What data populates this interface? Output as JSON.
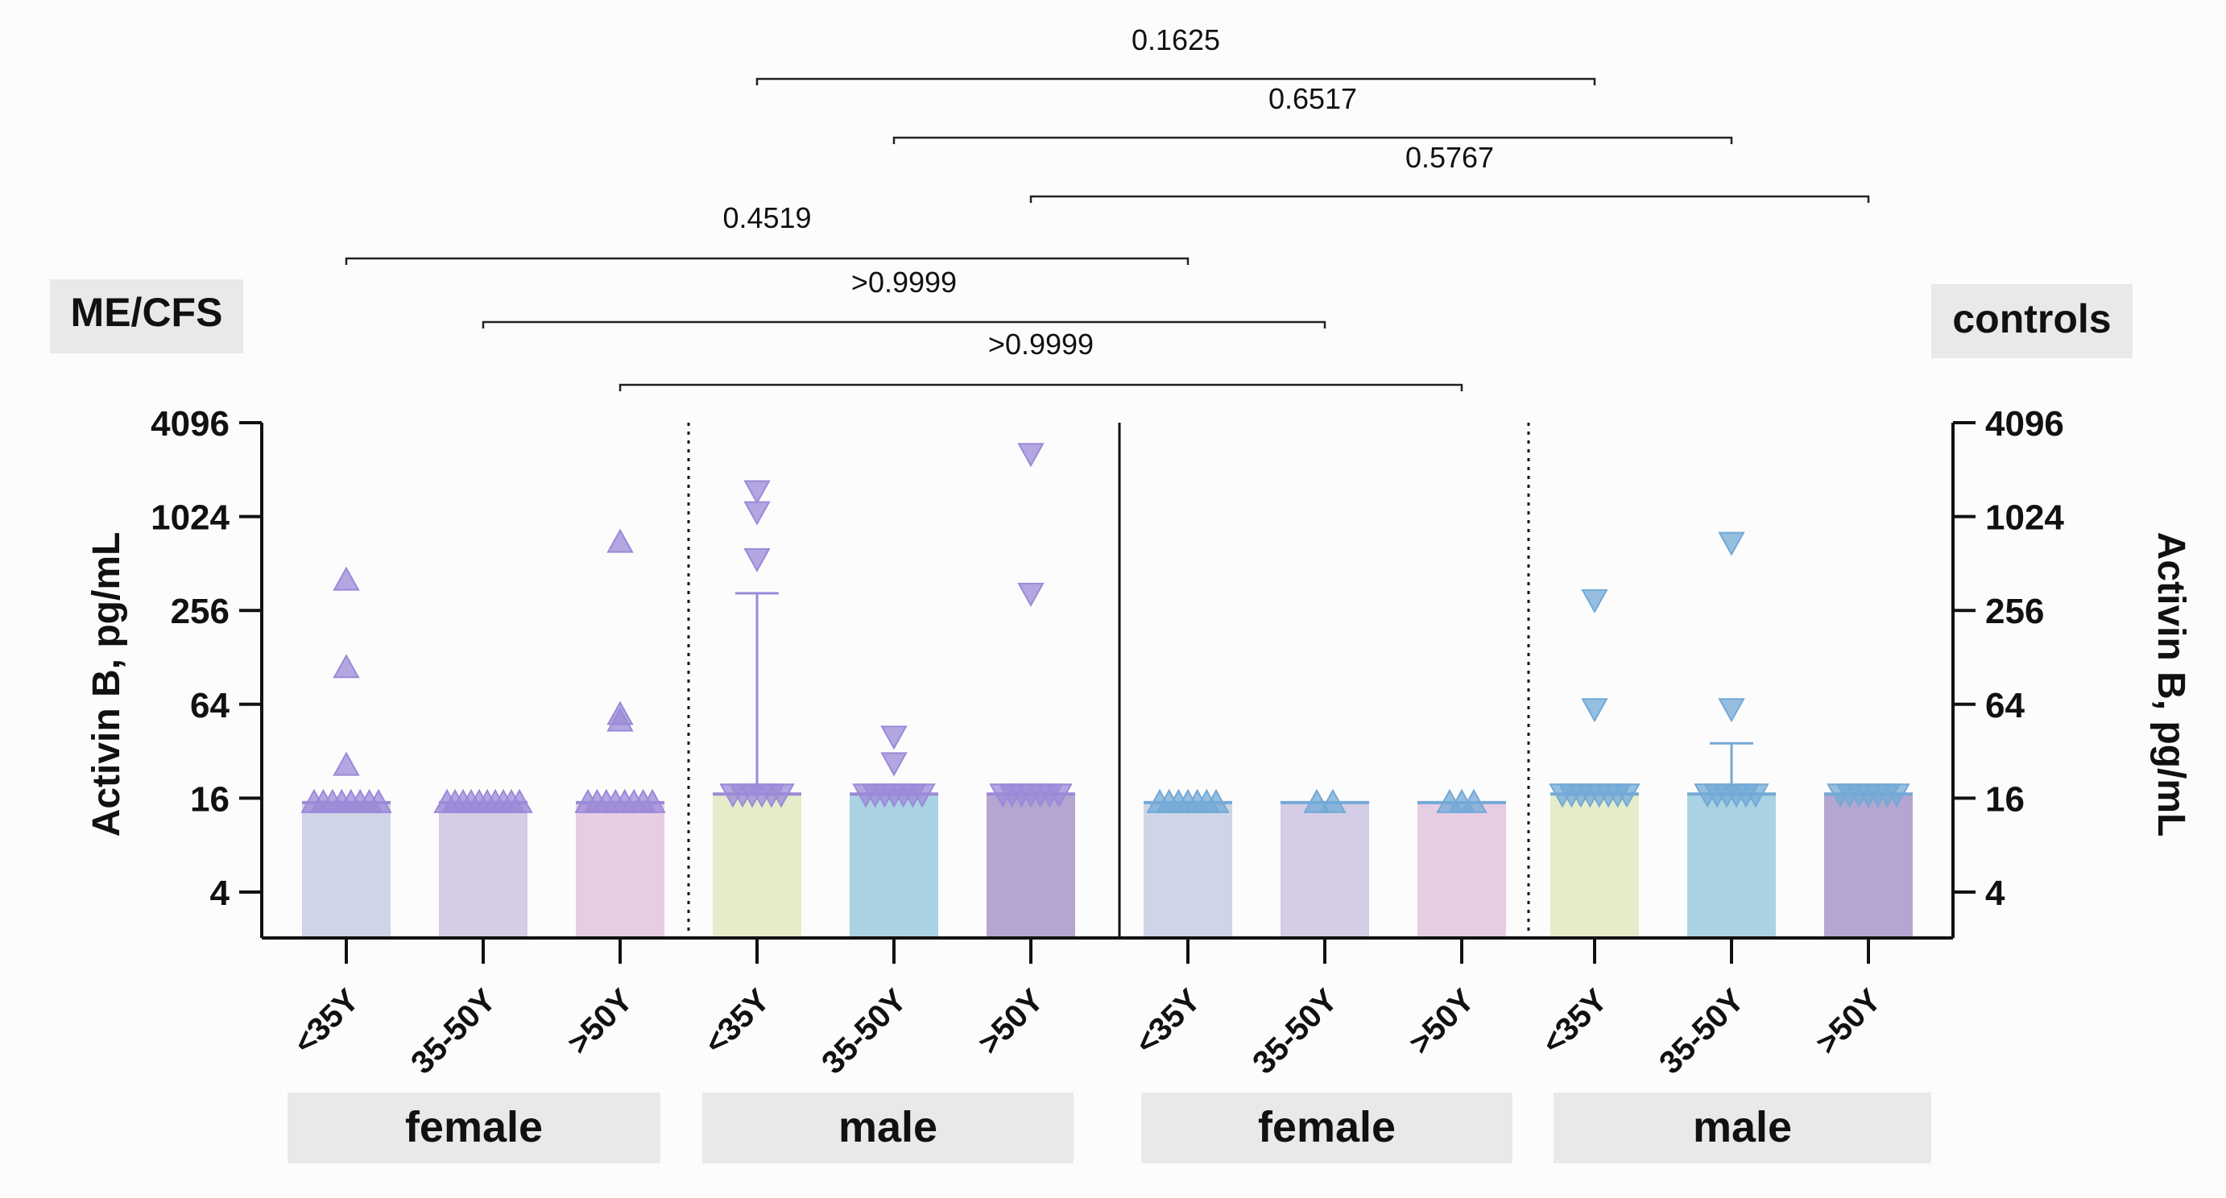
{
  "chart_data": {
    "type": "bar",
    "title": "",
    "scale": "log2",
    "ylim": [
      2,
      4096
    ],
    "yticks": [
      4,
      16,
      64,
      256,
      1024,
      4096
    ],
    "ytick_labels": [
      "4",
      "16",
      "64",
      "256",
      "1024",
      "4096"
    ],
    "ylabel_left": "Activin B, pg/mL",
    "ylabel_right": "Activin B, pg/mL",
    "panel_left_label": "ME/CFS",
    "panel_right_label": "controls",
    "categories": [
      "<35Y",
      "35-50Y",
      ">50Y",
      "<35Y",
      "35-50Y",
      ">50Y",
      "<35Y",
      "35-50Y",
      ">50Y",
      "<35Y",
      "35-50Y",
      ">50Y"
    ],
    "sex_groups": [
      {
        "label": "female",
        "cats": [
          0,
          2
        ]
      },
      {
        "label": "male",
        "cats": [
          3,
          5
        ]
      },
      {
        "label": "female",
        "cats": [
          6,
          8
        ]
      },
      {
        "label": "male",
        "cats": [
          9,
          11
        ]
      }
    ],
    "bars": [
      {
        "group": "ME/CFS",
        "sex": "female",
        "age": "<35Y",
        "mean": 15,
        "sem_upper": null,
        "color": "#cdd5e6",
        "marker": "triangle-up",
        "marker_color": "#9b8ad8",
        "points": [
          400,
          110,
          26,
          15,
          15,
          15,
          15,
          15,
          15,
          15,
          15
        ]
      },
      {
        "group": "ME/CFS",
        "sex": "female",
        "age": "35-50Y",
        "mean": 15,
        "sem_upper": null,
        "color": "#d4cde5",
        "marker": "triangle-up",
        "marker_color": "#9b8ad8",
        "points": [
          15,
          15,
          15,
          15,
          15,
          15,
          15,
          15,
          15,
          15
        ]
      },
      {
        "group": "ME/CFS",
        "sex": "female",
        "age": ">50Y",
        "mean": 15,
        "sem_upper": null,
        "color": "#e6cde4",
        "marker": "triangle-up",
        "marker_color": "#9b8ad8",
        "points": [
          700,
          55,
          50,
          15,
          15,
          15,
          15,
          15,
          15,
          15,
          15
        ]
      },
      {
        "group": "ME/CFS",
        "sex": "male",
        "age": "<35Y",
        "mean": 17,
        "sem_upper": 330,
        "color": "#e4ecca",
        "marker": "triangle-down",
        "marker_color": "#9b8ad8",
        "points": [
          1500,
          1100,
          550,
          17,
          17,
          17,
          17,
          17,
          17
        ]
      },
      {
        "group": "ME/CFS",
        "sex": "male",
        "age": "35-50Y",
        "mean": 17,
        "sem_upper": 18,
        "color": "#a9d3e3",
        "marker": "triangle-down",
        "marker_color": "#9b8ad8",
        "points": [
          40,
          27,
          17,
          17,
          17,
          17,
          17,
          17,
          17
        ]
      },
      {
        "group": "ME/CFS",
        "sex": "male",
        "age": ">50Y",
        "mean": 17,
        "sem_upper": null,
        "color": "#b4a6d0",
        "marker": "triangle-down",
        "marker_color": "#9b8ad8",
        "points": [
          2600,
          330,
          17,
          17,
          17,
          17,
          17,
          17,
          17
        ]
      },
      {
        "group": "controls",
        "sex": "female",
        "age": "<35Y",
        "mean": 15,
        "sem_upper": null,
        "color": "#cdd5e6",
        "marker": "triangle-up",
        "marker_color": "#73a9d6",
        "points": [
          15,
          15,
          15,
          15,
          15,
          15,
          15
        ]
      },
      {
        "group": "controls",
        "sex": "female",
        "age": "35-50Y",
        "mean": 15,
        "sem_upper": null,
        "color": "#d4cde5",
        "marker": "triangle-up",
        "marker_color": "#73a9d6",
        "points": [
          15,
          15
        ]
      },
      {
        "group": "controls",
        "sex": "female",
        "age": ">50Y",
        "mean": 15,
        "sem_upper": null,
        "color": "#e6cde4",
        "marker": "triangle-up",
        "marker_color": "#73a9d6",
        "points": [
          15,
          15,
          15
        ]
      },
      {
        "group": "controls",
        "sex": "male",
        "age": "<35Y",
        "mean": 17,
        "sem_upper": null,
        "color": "#e4ecca",
        "marker": "triangle-down",
        "marker_color": "#73a9d6",
        "points": [
          300,
          60,
          17,
          17,
          17,
          17,
          17,
          17,
          17,
          17
        ]
      },
      {
        "group": "controls",
        "sex": "male",
        "age": "35-50Y",
        "mean": 17,
        "sem_upper": 36,
        "color": "#a9d3e3",
        "marker": "triangle-down",
        "marker_color": "#73a9d6",
        "points": [
          700,
          60,
          17,
          17,
          17,
          17,
          17,
          17
        ]
      },
      {
        "group": "controls",
        "sex": "male",
        "age": ">50Y",
        "mean": 17,
        "sem_upper": null,
        "color": "#b4a6d0",
        "marker": "triangle-down",
        "marker_color": "#73a9d6",
        "points": [
          17,
          17,
          17,
          17,
          17,
          17,
          17
        ]
      }
    ],
    "comparisons": [
      {
        "from": 3,
        "to": 9,
        "label": "0.1625"
      },
      {
        "from": 4,
        "to": 10,
        "label": "0.6517"
      },
      {
        "from": 5,
        "to": 11,
        "label": "0.5767"
      },
      {
        "from": 0,
        "to": 6,
        "label": "0.4519"
      },
      {
        "from": 1,
        "to": 7,
        "label": ">0.9999"
      },
      {
        "from": 2,
        "to": 8,
        "label": ">0.9999"
      }
    ]
  }
}
